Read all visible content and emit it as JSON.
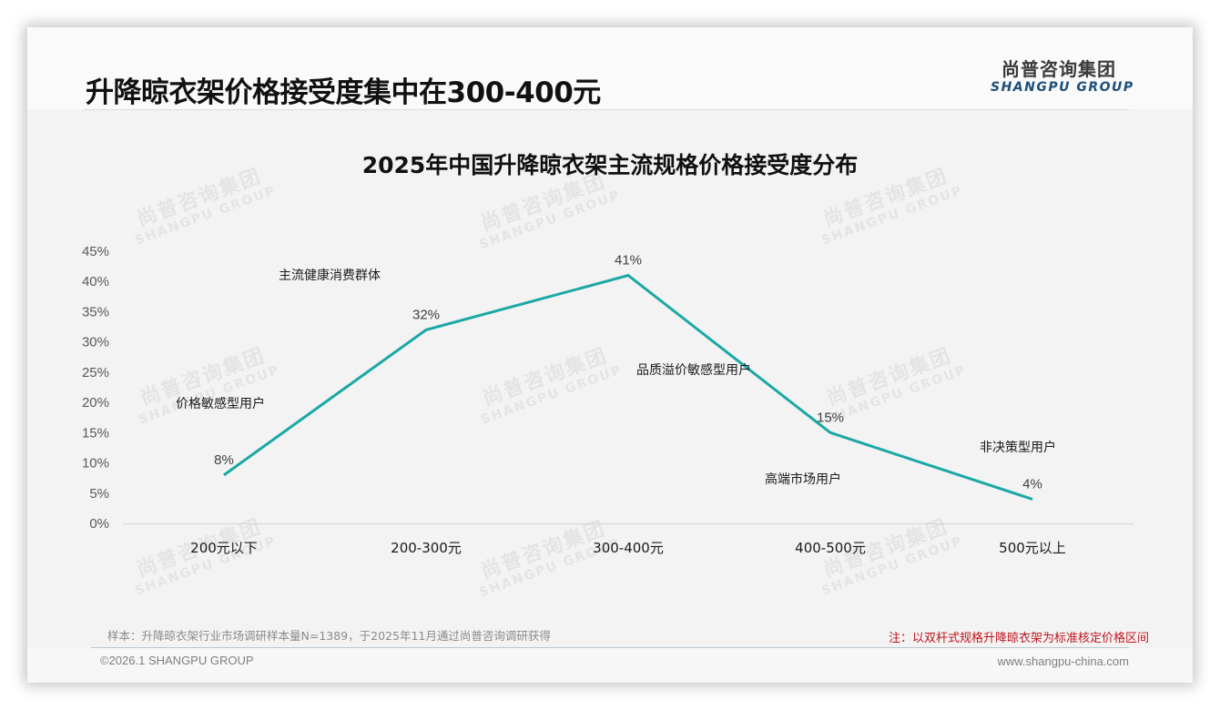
{
  "header": {
    "page_title": "升降晾衣架价格接受度集中在300-400元",
    "logo_cn": "尚普咨询集团",
    "logo_en": "SHANGPU GROUP"
  },
  "watermark": {
    "cn": "尚普咨询集团",
    "en": "SHANGPU GROUP"
  },
  "colors": {
    "line": "#1aa8a6",
    "note_red": "#c0141c",
    "logo_blue": "#1d4f7a"
  },
  "chart_data": {
    "type": "line",
    "title": "2025年中国升降晾衣架主流规格价格接受度分布",
    "xlabel": "",
    "ylabel": "",
    "categories": [
      "200元以下",
      "200-300元",
      "300-400元",
      "400-500元",
      "500元以上"
    ],
    "series": [
      {
        "name": "价格接受度",
        "values": [
          8,
          32,
          41,
          15,
          4
        ]
      }
    ],
    "data_labels": [
      "8%",
      "32%",
      "41%",
      "15%",
      "4%"
    ],
    "y_ticks": [
      "0%",
      "5%",
      "10%",
      "15%",
      "20%",
      "25%",
      "30%",
      "35%",
      "40%",
      "45%"
    ],
    "ylim": [
      0,
      45
    ],
    "unit": "%",
    "grid": false,
    "legend": "none",
    "annotations": [
      {
        "text": "价格敏感型用户",
        "near": "200元以下"
      },
      {
        "text": "主流健康消费群体",
        "near": "200-300元"
      },
      {
        "text": "品质溢价敏感型用户",
        "near": "300-400元"
      },
      {
        "text": "高端市场用户",
        "near": "400-500元"
      },
      {
        "text": "非决策型用户",
        "near": "500元以上"
      }
    ]
  },
  "notes": {
    "sample": "样本：升降晾衣架行业市场调研样本量N=1389，于2025年11月通过尚普咨询调研获得",
    "remark": "注：以双杆式规格升降晾衣架为标准核定价格区间"
  },
  "footer": {
    "copyright": "©2026.1 SHANGPU GROUP",
    "website": "www.shangpu-china.com"
  }
}
